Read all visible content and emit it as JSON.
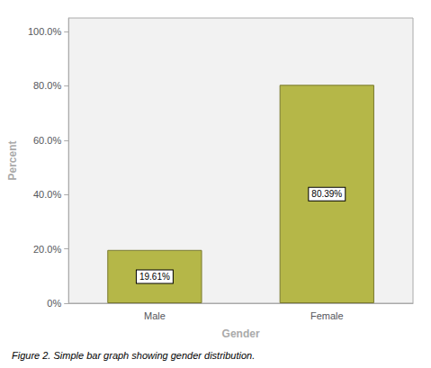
{
  "chart_data": {
    "type": "bar",
    "categories": [
      "Male",
      "Female"
    ],
    "values": [
      19.61,
      80.39
    ],
    "value_labels": [
      "19.61%",
      "80.39%"
    ],
    "data_labels": true,
    "color": "#b5b748",
    "xlabel": "Gender",
    "ylabel": "Percent",
    "ylim": [
      0,
      105
    ],
    "yticks": [
      {
        "value": 0,
        "label": "0%"
      },
      {
        "value": 20,
        "label": "20.0%"
      },
      {
        "value": 40,
        "label": "40.0%"
      },
      {
        "value": 60,
        "label": "60.0%"
      },
      {
        "value": 80,
        "label": "80.0%"
      },
      {
        "value": 100,
        "label": "100.0%"
      }
    ],
    "grid": false,
    "caption": "Figure 2. Simple bar graph showing gender distribution."
  }
}
